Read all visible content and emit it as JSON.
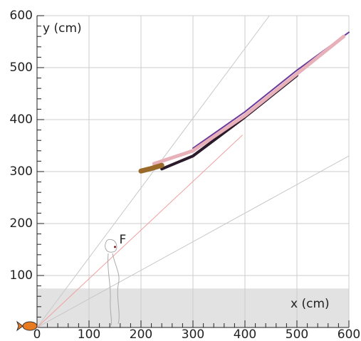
{
  "chart_data": {
    "type": "line",
    "x_label": "x (cm)",
    "y_label": "y (cm)",
    "xlim": [
      0,
      600
    ],
    "ylim": [
      0,
      600
    ],
    "xticks": [
      0,
      100,
      200,
      300,
      400,
      500,
      600
    ],
    "yticks": [
      0,
      100,
      200,
      300,
      400,
      500,
      600
    ],
    "grid": true,
    "shaded_band": {
      "ylim": [
        0,
        75
      ],
      "color": "#e2e2e2"
    },
    "annotation": {
      "text": "F",
      "x": 150,
      "y": 155
    },
    "series": [
      {
        "color": "#c8c8c8",
        "width": 1,
        "x": [
          0,
          600
        ],
        "y": [
          0,
          330
        ]
      },
      {
        "color": "#c8c8c8",
        "width": 1,
        "x": [
          0,
          447
        ],
        "y": [
          0,
          600
        ]
      },
      {
        "color": "#f0a0a0",
        "width": 1,
        "x": [
          0,
          395
        ],
        "y": [
          0,
          370
        ]
      },
      {
        "color": "#2a1a2a",
        "width": 4,
        "x": [
          240,
          300,
          400,
          500
        ],
        "y": [
          305,
          330,
          405,
          485
        ]
      },
      {
        "color": "#6a3a9a",
        "width": 2,
        "x": [
          300,
          400,
          500,
          600
        ],
        "y": [
          345,
          415,
          495,
          568
        ]
      },
      {
        "color": "#e8b0b8",
        "width": 5,
        "x": [
          225,
          300,
          400,
          500,
          590
        ],
        "y": [
          315,
          340,
          408,
          488,
          560
        ]
      },
      {
        "color": "#9a6a2a",
        "width": 7,
        "x": [
          200,
          220,
          240
        ],
        "y": [
          301,
          306,
          312
        ]
      }
    ]
  }
}
